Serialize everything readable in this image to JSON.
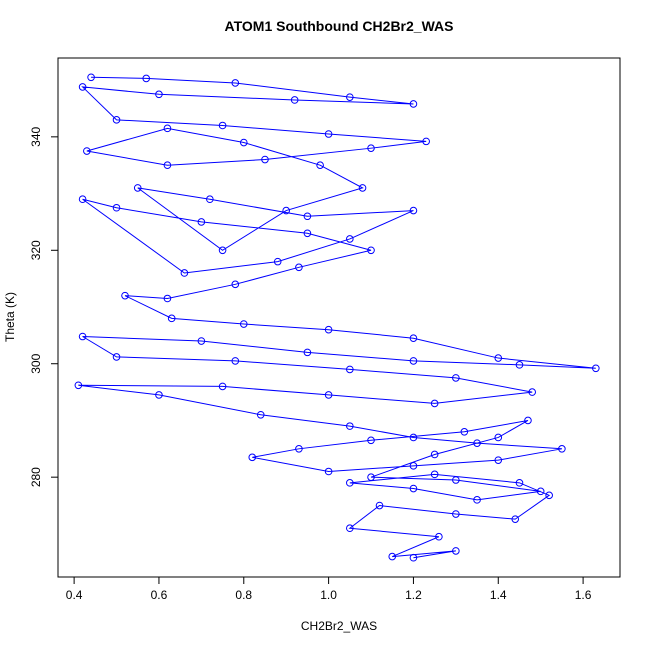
{
  "chart_data": {
    "type": "line",
    "markers": true,
    "title": "ATOM1 Southbound CH2Br2_WAS",
    "xlabel": "CH2Br2_WAS",
    "ylabel": "Theta (K)",
    "color": "#0000ff",
    "x": [
      0.44,
      0.57,
      0.78,
      1.05,
      1.2,
      0.92,
      0.6,
      0.42,
      0.5,
      0.75,
      1.0,
      1.23,
      1.1,
      0.85,
      0.62,
      0.43,
      0.62,
      0.8,
      0.98,
      1.08,
      0.9,
      0.75,
      0.55,
      0.72,
      0.95,
      1.2,
      1.05,
      0.88,
      0.66,
      0.42,
      0.5,
      0.7,
      0.95,
      1.1,
      0.93,
      0.78,
      0.62,
      0.52,
      0.63,
      0.8,
      1.0,
      1.2,
      1.4,
      1.63,
      1.45,
      1.2,
      0.95,
      0.7,
      0.42,
      0.5,
      0.78,
      1.05,
      1.3,
      1.48,
      1.25,
      1.0,
      0.75,
      0.41,
      0.6,
      0.84,
      1.05,
      1.2,
      1.35,
      1.55,
      1.4,
      1.2,
      1.0,
      0.82,
      0.93,
      1.1,
      1.32,
      1.47,
      1.4,
      1.25,
      1.1,
      1.3,
      1.5,
      1.35,
      1.2,
      1.05,
      1.25,
      1.45,
      1.52,
      1.44,
      1.3,
      1.12,
      1.05,
      1.26,
      1.15,
      1.3,
      1.2
    ],
    "values": [
      350.5,
      350.3,
      349.5,
      347,
      345.8,
      346.5,
      347.5,
      348.8,
      343,
      342,
      340.5,
      339.2,
      338,
      336,
      335,
      337.5,
      341.5,
      339,
      335,
      331,
      327,
      320,
      331,
      329,
      326,
      327,
      322,
      318,
      316,
      329,
      327.5,
      325,
      323,
      320,
      317,
      314,
      311.5,
      312,
      308,
      307,
      306,
      304.5,
      301,
      299.2,
      299.8,
      300.5,
      302,
      304,
      304.8,
      301.2,
      300.5,
      299,
      297.5,
      295,
      293,
      294.5,
      296,
      296.2,
      294.5,
      291,
      289,
      287,
      286,
      285,
      283,
      282,
      281,
      283.5,
      285,
      286.5,
      288,
      290,
      287,
      284,
      280,
      279.5,
      277.5,
      276,
      278,
      279,
      280.5,
      279,
      276.8,
      272.6,
      273.5,
      275,
      271,
      269.5,
      266,
      267,
      265.8
    ],
    "xlim": [
      0.362,
      1.687
    ],
    "ylim": [
      262.4,
      353.9
    ],
    "xticks": [
      0.4,
      0.6,
      0.8,
      {
        "value": 1,
        "label": "1.0"
      },
      1.2,
      1.4,
      1.6
    ],
    "yticks": [
      280,
      300,
      320,
      340
    ]
  }
}
